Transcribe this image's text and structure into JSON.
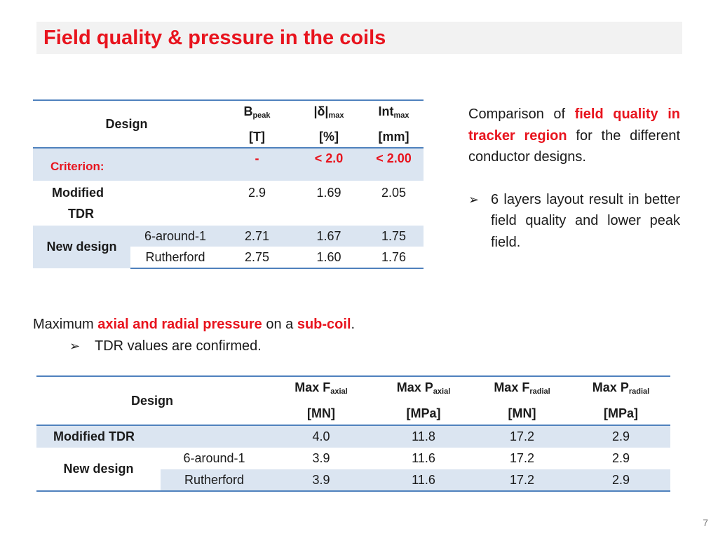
{
  "title": "Field quality & pressure in the coils",
  "table1": {
    "design_label": "Design",
    "headers": [
      {
        "main": "B",
        "sub": "peak",
        "unit": "[T]"
      },
      {
        "main": "|δ|",
        "sub": "max",
        "unit": "[%]"
      },
      {
        "main": "Int",
        "sub": "max",
        "unit": "[mm]"
      }
    ],
    "criterion": {
      "label": "Criterion:",
      "values": [
        "-",
        "< 2.0",
        "< 2.00"
      ]
    },
    "modified": {
      "label_line1": "Modified",
      "label_line2": "TDR",
      "values": [
        "2.9",
        "1.69",
        "2.05"
      ]
    },
    "new_design": {
      "label": "New design",
      "rows": [
        {
          "variant": "6-around-1",
          "values": [
            "2.71",
            "1.67",
            "1.75"
          ]
        },
        {
          "variant": "Rutherford",
          "values": [
            "2.75",
            "1.60",
            "1.76"
          ]
        }
      ]
    }
  },
  "side_text": {
    "p1_a": "Comparison of ",
    "p1_b": "field quality in tracker region",
    "p1_c": " for the different conductor designs.",
    "bullet": "6 layers layout result in better field quality and lower peak field."
  },
  "middle_text": {
    "a": "Maximum ",
    "b": "axial and radial pressure",
    "c": " on a ",
    "d": "sub-coil",
    "e": ".",
    "bullet": "TDR values are confirmed."
  },
  "table2": {
    "design_label": "Design",
    "headers": [
      {
        "main": "Max F",
        "sub": "axial",
        "unit": "[MN]"
      },
      {
        "main": "Max P",
        "sub": "axial",
        "unit": "[MPa]"
      },
      {
        "main": "Max F",
        "sub": "radial",
        "unit": "[MN]"
      },
      {
        "main": "Max P",
        "sub": "radial",
        "unit": "[MPa]"
      }
    ],
    "modified": {
      "label": "Modified TDR",
      "values": [
        "4.0",
        "11.8",
        "17.2",
        "2.9"
      ]
    },
    "new_design": {
      "label": "New design",
      "rows": [
        {
          "variant": "6-around-1",
          "values": [
            "3.9",
            "11.6",
            "17.2",
            "2.9"
          ]
        },
        {
          "variant": "Rutherford",
          "values": [
            "3.9",
            "11.6",
            "17.2",
            "2.9"
          ]
        }
      ]
    }
  },
  "page_number": "7",
  "colors": {
    "accent_red": "#e8141e",
    "table_line": "#4f81bd",
    "row_shade": "#dbe5f1",
    "title_bg": "#f2f2f2"
  }
}
